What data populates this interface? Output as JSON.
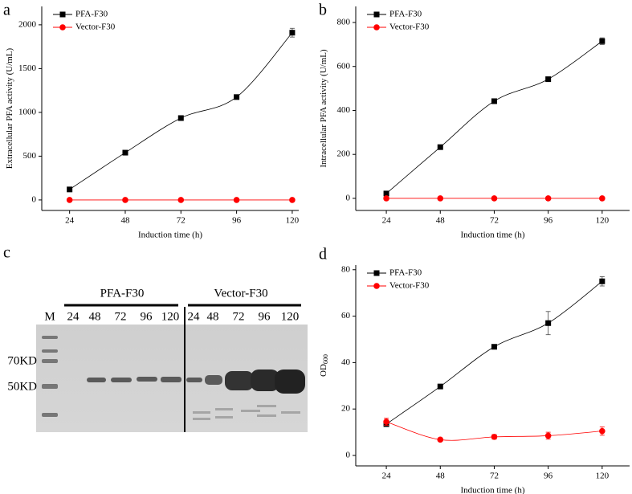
{
  "chart_data": [
    {
      "type": "line",
      "panel_label": "a",
      "x_label": "Induction time (h)",
      "y_label": "Extracellular PFA activity (U/mL)",
      "x": [
        24,
        48,
        72,
        96,
        120
      ],
      "xlim": [
        12,
        122.8
      ],
      "xticks": [
        24,
        48,
        72,
        96,
        120
      ],
      "ylim": [
        -120,
        2210
      ],
      "yticks": [
        0,
        500,
        1000,
        1500,
        2000
      ],
      "legend": "upper left",
      "series": [
        {
          "name": "PFA-F30",
          "color": "#000000",
          "marker": "square",
          "values": [
            120,
            540,
            935,
            1175,
            1910
          ],
          "errors": [
            10,
            15,
            15,
            20,
            50
          ]
        },
        {
          "name": "Vector-F30",
          "color": "#ff0000",
          "marker": "circle",
          "values": [
            0,
            0,
            0,
            0,
            0
          ],
          "errors": [
            0,
            0,
            0,
            0,
            0
          ]
        }
      ]
    },
    {
      "type": "line",
      "panel_label": "b",
      "x_label": "Induction time (h)",
      "y_label": "Intracellular PFA activity (U/mL)",
      "x": [
        24,
        48,
        72,
        96,
        120
      ],
      "xlim": [
        10.4,
        132.2
      ],
      "xticks": [
        24,
        48,
        72,
        96,
        120
      ],
      "ylim": [
        -55,
        873
      ],
      "yticks": [
        0,
        200,
        400,
        600,
        800
      ],
      "legend": "upper left",
      "series": [
        {
          "name": "PFA-F30",
          "color": "#000000",
          "marker": "square",
          "values": [
            22,
            233,
            442,
            542,
            715
          ],
          "errors": [
            5,
            8,
            10,
            10,
            15
          ]
        },
        {
          "name": "Vector-F30",
          "color": "#ff0000",
          "marker": "circle",
          "values": [
            0,
            0,
            0,
            0,
            0
          ],
          "errors": [
            0,
            0,
            0,
            0,
            0
          ]
        }
      ]
    },
    {
      "type": "gel",
      "panel_label": "c",
      "groups": [
        "PFA-F30",
        "Vector-F30"
      ],
      "lanes": [
        "M",
        "24",
        "48",
        "72",
        "96",
        "120",
        "24",
        "48",
        "72",
        "96",
        "120"
      ],
      "markers": [
        "70KD",
        "50KD"
      ]
    },
    {
      "type": "line",
      "panel_label": "d",
      "x_label": "Induction time (h)",
      "y_label": "OD",
      "y_label_sub": "600",
      "x": [
        24,
        48,
        72,
        96,
        120
      ],
      "xlim": [
        10.4,
        132.2
      ],
      "xticks": [
        24,
        48,
        72,
        96,
        120
      ],
      "ylim": [
        -4.5,
        82
      ],
      "yticks": [
        0,
        20,
        40,
        60,
        80
      ],
      "legend": "upper left",
      "series": [
        {
          "name": "PFA-F30",
          "color": "#000000",
          "marker": "square",
          "values": [
            13.5,
            29.7,
            46.8,
            57,
            75
          ],
          "errors": [
            0.5,
            0.5,
            0.5,
            5,
            2
          ]
        },
        {
          "name": "Vector-F30",
          "color": "#ff0000",
          "marker": "circle",
          "values": [
            14.5,
            6.8,
            8,
            8.5,
            10.5
          ],
          "errors": [
            1.5,
            0.5,
            1,
            1.5,
            1.8
          ]
        }
      ]
    }
  ]
}
